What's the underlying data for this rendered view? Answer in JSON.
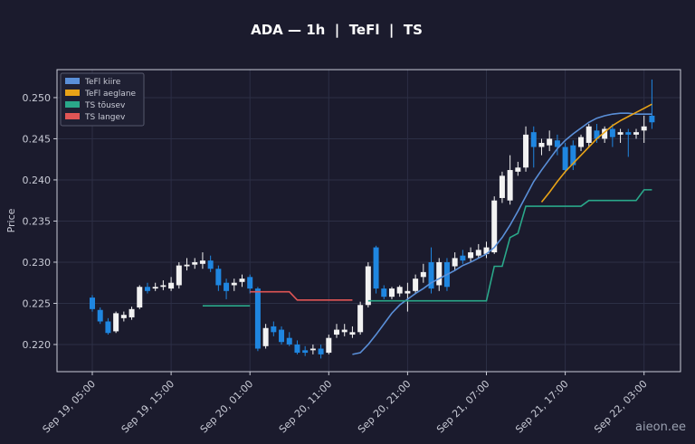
{
  "chart_data": {
    "type": "candlestick",
    "title": "ADA — 1h  |  TeFl  |  TS",
    "y_label": "Price",
    "watermark": "aieon.ee",
    "grid": true,
    "legend": "upper left",
    "up_color": "#f2f2f2",
    "down_color": "#1f86e0",
    "ylim": [
      0.2167,
      0.2534
    ],
    "yticks": [
      {
        "value": 0.22,
        "label": "0.220"
      },
      0.225,
      {
        "value": 0.23,
        "label": "0.230"
      },
      0.235,
      {
        "value": 0.24,
        "label": "0.240"
      },
      0.245,
      {
        "value": 0.25,
        "label": "0.250"
      }
    ],
    "x": [
      "Sep 19, 05:00",
      "Sep 19, 06:00",
      "Sep 19, 07:00",
      "Sep 19, 08:00",
      "Sep 19, 09:00",
      "Sep 19, 10:00",
      "Sep 19, 11:00",
      "Sep 19, 12:00",
      "Sep 19, 13:00",
      "Sep 19, 14:00",
      "Sep 19, 15:00",
      "Sep 19, 16:00",
      "Sep 19, 17:00",
      "Sep 19, 18:00",
      "Sep 19, 19:00",
      "Sep 19, 20:00",
      "Sep 19, 21:00",
      "Sep 19, 22:00",
      "Sep 19, 23:00",
      "Sep 20, 00:00",
      "Sep 20, 01:00",
      "Sep 20, 02:00",
      "Sep 20, 03:00",
      "Sep 20, 04:00",
      "Sep 20, 05:00",
      "Sep 20, 06:00",
      "Sep 20, 07:00",
      "Sep 20, 08:00",
      "Sep 20, 09:00",
      "Sep 20, 10:00",
      "Sep 20, 11:00",
      "Sep 20, 12:00",
      "Sep 20, 13:00",
      "Sep 20, 14:00",
      "Sep 20, 15:00",
      "Sep 20, 16:00",
      "Sep 20, 17:00",
      "Sep 20, 18:00",
      "Sep 20, 19:00",
      "Sep 20, 20:00",
      "Sep 20, 21:00",
      "Sep 20, 22:00",
      "Sep 20, 23:00",
      "Sep 21, 00:00",
      "Sep 21, 01:00",
      "Sep 21, 02:00",
      "Sep 21, 03:00",
      "Sep 21, 04:00",
      "Sep 21, 05:00",
      "Sep 21, 06:00",
      "Sep 21, 07:00",
      "Sep 21, 08:00",
      "Sep 21, 09:00",
      "Sep 21, 10:00",
      "Sep 21, 11:00",
      "Sep 21, 12:00",
      "Sep 21, 13:00",
      "Sep 21, 14:00",
      "Sep 21, 15:00",
      "Sep 21, 16:00",
      "Sep 21, 17:00",
      "Sep 21, 18:00",
      "Sep 21, 19:00",
      "Sep 21, 20:00",
      "Sep 21, 21:00",
      "Sep 21, 22:00",
      "Sep 21, 23:00",
      "Sep 22, 00:00",
      "Sep 22, 01:00",
      "Sep 22, 02:00",
      "Sep 22, 03:00",
      "Sep 22, 04:00"
    ],
    "xticks": [
      "Sep 19, 05:00",
      "Sep 19, 15:00",
      "Sep 20, 01:00",
      "Sep 20, 11:00",
      "Sep 20, 21:00",
      "Sep 21, 07:00",
      "Sep 21, 17:00",
      "Sep 22, 03:00"
    ],
    "open": [
      0.2257,
      0.2242,
      0.2228,
      0.2216,
      0.2232,
      0.2233,
      0.2245,
      0.227,
      0.2268,
      0.227,
      0.2268,
      0.2272,
      0.2295,
      0.2297,
      0.2298,
      0.2302,
      0.2292,
      0.2275,
      0.2272,
      0.2276,
      0.2282,
      0.2268,
      0.2198,
      0.2222,
      0.2218,
      0.2208,
      0.22,
      0.2193,
      0.2193,
      0.2195,
      0.219,
      0.2212,
      0.2215,
      0.2212,
      0.2215,
      0.2248,
      0.2318,
      0.2268,
      0.2258,
      0.2262,
      0.2262,
      0.2265,
      0.2282,
      0.23,
      0.2272,
      0.23,
      0.2295,
      0.2308,
      0.2305,
      0.2308,
      0.231,
      0.2312,
      0.2378,
      0.2375,
      0.241,
      0.2415,
      0.2458,
      0.244,
      0.2442,
      0.2448,
      0.244,
      0.2442,
      0.244,
      0.2445,
      0.246,
      0.245,
      0.2462,
      0.2455,
      0.2458,
      0.2455,
      0.246,
      0.2478
    ],
    "high": [
      0.226,
      0.2245,
      0.2232,
      0.224,
      0.224,
      0.2246,
      0.2272,
      0.2275,
      0.2275,
      0.2278,
      0.2282,
      0.23,
      0.2305,
      0.2305,
      0.2312,
      0.2308,
      0.2296,
      0.228,
      0.228,
      0.2285,
      0.2285,
      0.227,
      0.2225,
      0.2228,
      0.2222,
      0.2215,
      0.2205,
      0.2198,
      0.22,
      0.22,
      0.2212,
      0.2225,
      0.2225,
      0.2222,
      0.2252,
      0.23,
      0.232,
      0.2272,
      0.227,
      0.2272,
      0.2275,
      0.2285,
      0.2298,
      0.2318,
      0.2305,
      0.2305,
      0.2312,
      0.2315,
      0.2318,
      0.2322,
      0.2325,
      0.238,
      0.241,
      0.243,
      0.2422,
      0.2465,
      0.2465,
      0.245,
      0.246,
      0.2455,
      0.2445,
      0.2448,
      0.2455,
      0.2468,
      0.2468,
      0.2465,
      0.2468,
      0.2462,
      0.2462,
      0.2462,
      0.2478,
      0.2522
    ],
    "low": [
      0.224,
      0.2225,
      0.2212,
      0.2214,
      0.2228,
      0.223,
      0.2243,
      0.2262,
      0.2265,
      0.2266,
      0.2265,
      0.2268,
      0.229,
      0.2292,
      0.2292,
      0.2288,
      0.2265,
      0.2255,
      0.2265,
      0.227,
      0.2262,
      0.2192,
      0.2195,
      0.221,
      0.22,
      0.2198,
      0.2188,
      0.2186,
      0.2188,
      0.2183,
      0.2188,
      0.2208,
      0.221,
      0.2208,
      0.2212,
      0.2245,
      0.2262,
      0.2255,
      0.2255,
      0.2258,
      0.224,
      0.2262,
      0.2275,
      0.2262,
      0.2265,
      0.2265,
      0.229,
      0.2298,
      0.23,
      0.2305,
      0.2305,
      0.231,
      0.2372,
      0.237,
      0.2405,
      0.241,
      0.2415,
      0.243,
      0.2435,
      0.243,
      0.2408,
      0.2412,
      0.2435,
      0.244,
      0.2445,
      0.2445,
      0.244,
      0.2445,
      0.2428,
      0.245,
      0.2445,
      0.2462
    ],
    "close": [
      0.2243,
      0.2228,
      0.2214,
      0.2238,
      0.2236,
      0.2243,
      0.227,
      0.2265,
      0.227,
      0.2272,
      0.2275,
      0.2296,
      0.2297,
      0.23,
      0.2302,
      0.2292,
      0.2272,
      0.2265,
      0.2275,
      0.228,
      0.2268,
      0.2195,
      0.222,
      0.2215,
      0.2203,
      0.22,
      0.219,
      0.219,
      0.2195,
      0.2188,
      0.2208,
      0.2218,
      0.2218,
      0.2215,
      0.2248,
      0.2295,
      0.2268,
      0.2258,
      0.2268,
      0.227,
      0.2265,
      0.228,
      0.2288,
      0.2268,
      0.23,
      0.227,
      0.2305,
      0.2302,
      0.2312,
      0.2315,
      0.2318,
      0.2375,
      0.2405,
      0.2412,
      0.2415,
      0.2455,
      0.244,
      0.2445,
      0.245,
      0.244,
      0.2412,
      0.2418,
      0.2452,
      0.2465,
      0.245,
      0.2462,
      0.2452,
      0.2458,
      0.2455,
      0.2458,
      0.2465,
      0.247
    ],
    "series": [
      {
        "name": "TeFl kiire",
        "color": "#5a8fd8",
        "values": [
          null,
          null,
          null,
          null,
          null,
          null,
          null,
          null,
          null,
          null,
          null,
          null,
          null,
          null,
          null,
          null,
          null,
          null,
          null,
          null,
          null,
          null,
          null,
          null,
          null,
          null,
          null,
          null,
          null,
          null,
          null,
          null,
          null,
          0.2188,
          0.219,
          0.22,
          0.2212,
          0.2225,
          0.2238,
          0.2248,
          0.2255,
          0.2262,
          0.2268,
          0.2275,
          0.228,
          0.2285,
          0.229,
          0.2296,
          0.23,
          0.2305,
          0.231,
          0.2318,
          0.233,
          0.2345,
          0.2362,
          0.238,
          0.2398,
          0.2412,
          0.2425,
          0.2438,
          0.2448,
          0.2456,
          0.2463,
          0.247,
          0.2475,
          0.2478,
          0.248,
          0.2481,
          0.2481,
          0.248,
          0.248,
          0.248
        ]
      },
      {
        "name": "TeFl aeglane",
        "color": "#e8a317",
        "values": [
          null,
          null,
          null,
          null,
          null,
          null,
          null,
          null,
          null,
          null,
          null,
          null,
          null,
          null,
          null,
          null,
          null,
          null,
          null,
          null,
          null,
          null,
          null,
          null,
          null,
          null,
          null,
          null,
          null,
          null,
          null,
          null,
          null,
          null,
          null,
          null,
          null,
          null,
          null,
          null,
          null,
          null,
          null,
          null,
          null,
          null,
          null,
          null,
          null,
          null,
          null,
          null,
          null,
          null,
          null,
          null,
          null,
          0.2373,
          0.2385,
          0.2398,
          0.241,
          0.242,
          0.243,
          0.244,
          0.245,
          0.2458,
          0.2466,
          0.2472,
          0.2477,
          0.2482,
          0.2487,
          0.2492
        ]
      },
      {
        "name": "TS tõusev",
        "color": "#2aa88a",
        "values": [
          null,
          null,
          null,
          null,
          null,
          null,
          null,
          null,
          null,
          null,
          null,
          null,
          null,
          null,
          0.2247,
          0.2247,
          0.2247,
          0.2247,
          0.2247,
          0.2247,
          0.2247,
          null,
          null,
          null,
          null,
          null,
          null,
          null,
          null,
          null,
          null,
          null,
          null,
          null,
          null,
          0.2253,
          0.2253,
          0.2253,
          0.2253,
          0.2253,
          0.2253,
          0.2253,
          0.2253,
          0.2253,
          0.2253,
          0.2253,
          0.2253,
          0.2253,
          0.2253,
          0.2253,
          0.2253,
          0.2295,
          0.2295,
          0.233,
          0.2335,
          0.2368,
          0.2368,
          0.2368,
          0.2368,
          0.2368,
          0.2368,
          0.2368,
          0.2368,
          0.2375,
          0.2375,
          0.2375,
          0.2375,
          0.2375,
          0.2375,
          0.2375,
          0.2388,
          0.2388
        ]
      },
      {
        "name": "TS langev",
        "color": "#e05555",
        "values": [
          null,
          null,
          null,
          null,
          null,
          null,
          null,
          null,
          null,
          null,
          null,
          null,
          null,
          null,
          null,
          null,
          null,
          null,
          null,
          null,
          0.2264,
          0.2264,
          0.2264,
          0.2264,
          0.2264,
          0.2264,
          0.2254,
          0.2254,
          0.2254,
          0.2254,
          0.2254,
          0.2254,
          0.2254,
          0.2254,
          null,
          null,
          null,
          null,
          null,
          null,
          null,
          null,
          null,
          null,
          null,
          null,
          null,
          null,
          null,
          null,
          null,
          null,
          null,
          null,
          null,
          null,
          null,
          null,
          null,
          null,
          null,
          null,
          null,
          null,
          null,
          null,
          null,
          null,
          null,
          null,
          null,
          null
        ]
      }
    ]
  }
}
